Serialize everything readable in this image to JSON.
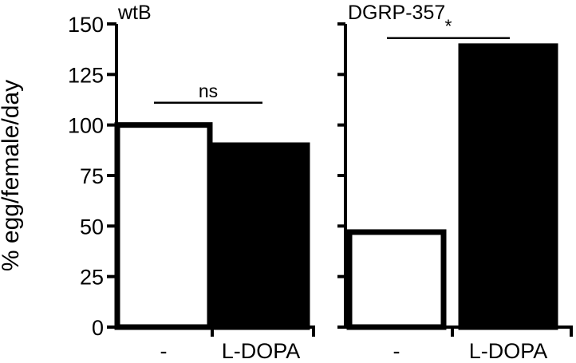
{
  "chart_data": [
    {
      "type": "bar",
      "title": "wtB",
      "ylabel": "% egg/female/day",
      "ylim": [
        0,
        150
      ],
      "yticks": [
        0,
        25,
        50,
        75,
        100,
        125,
        150
      ],
      "categories": [
        "-",
        "L-DOPA"
      ],
      "values": [
        100,
        90
      ],
      "bar_fills": [
        "#ffffff",
        "#000000"
      ],
      "significance": {
        "between": [
          0,
          1
        ],
        "label": "ns",
        "y": 111
      }
    },
    {
      "type": "bar",
      "title": "DGRP-357",
      "ylim": [
        0,
        150
      ],
      "categories": [
        "-",
        "L-DOPA"
      ],
      "values": [
        47,
        139
      ],
      "bar_fills": [
        "#ffffff",
        "#000000"
      ],
      "significance": {
        "between": [
          0,
          1
        ],
        "label": "*",
        "y": 143
      }
    }
  ]
}
